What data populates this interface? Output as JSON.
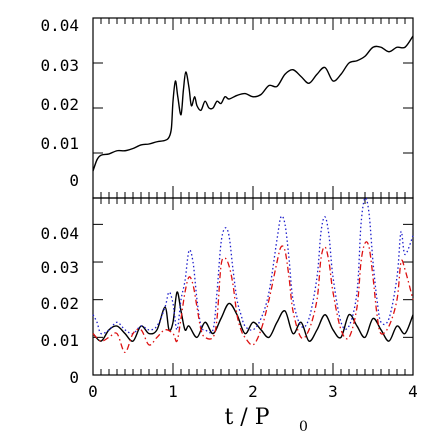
{
  "chart_data": [
    {
      "type": "line",
      "panel": "top",
      "xlim": [
        0,
        4
      ],
      "ylim": [
        0,
        0.04
      ],
      "y_ticks": [
        "0",
        "0.01",
        "0.02",
        "0.03",
        "0.04"
      ],
      "grid": false,
      "series": [
        {
          "color": "#000000",
          "style": "solid",
          "x": [
            0.0,
            0.05,
            0.1,
            0.2,
            0.3,
            0.4,
            0.5,
            0.6,
            0.7,
            0.8,
            0.9,
            0.95,
            0.98,
            1.0,
            1.03,
            1.06,
            1.1,
            1.13,
            1.16,
            1.2,
            1.23,
            1.27,
            1.3,
            1.35,
            1.4,
            1.45,
            1.5,
            1.55,
            1.6,
            1.65,
            1.7,
            1.8,
            1.9,
            2.0,
            2.1,
            2.2,
            2.3,
            2.4,
            2.5,
            2.6,
            2.7,
            2.8,
            2.9,
            3.0,
            3.1,
            3.2,
            3.3,
            3.4,
            3.5,
            3.6,
            3.7,
            3.8,
            3.9,
            4.0
          ],
          "y": [
            0.006,
            0.0085,
            0.0095,
            0.0098,
            0.0105,
            0.0105,
            0.011,
            0.0118,
            0.012,
            0.0125,
            0.0128,
            0.0135,
            0.0155,
            0.0215,
            0.026,
            0.0225,
            0.0185,
            0.024,
            0.028,
            0.0245,
            0.0205,
            0.0225,
            0.0205,
            0.0195,
            0.0215,
            0.02,
            0.02,
            0.0215,
            0.021,
            0.0225,
            0.022,
            0.0228,
            0.0232,
            0.0225,
            0.023,
            0.025,
            0.0248,
            0.0275,
            0.0285,
            0.027,
            0.0255,
            0.0275,
            0.029,
            0.026,
            0.0275,
            0.03,
            0.0305,
            0.0315,
            0.0335,
            0.0335,
            0.0325,
            0.0335,
            0.0335,
            0.036
          ]
        }
      ]
    },
    {
      "type": "line",
      "panel": "bottom",
      "xlim": [
        0,
        4
      ],
      "ylim": [
        0,
        0.047
      ],
      "y_ticks": [
        "0",
        "0.01",
        "0.02",
        "0.03",
        "0.04"
      ],
      "x_ticks": [
        "0",
        "1",
        "2",
        "3",
        "4"
      ],
      "xlabel_main": "t  /  P",
      "xlabel_sub": "0",
      "grid": false,
      "series": [
        {
          "color": "#000000",
          "style": "solid",
          "x": [
            0.0,
            0.1,
            0.2,
            0.3,
            0.4,
            0.5,
            0.6,
            0.7,
            0.8,
            0.9,
            0.95,
            1.0,
            1.05,
            1.1,
            1.15,
            1.2,
            1.3,
            1.4,
            1.5,
            1.6,
            1.7,
            1.8,
            1.9,
            2.0,
            2.1,
            2.2,
            2.3,
            2.4,
            2.5,
            2.6,
            2.7,
            2.8,
            2.9,
            3.0,
            3.1,
            3.2,
            3.3,
            3.4,
            3.5,
            3.6,
            3.7,
            3.8,
            3.9,
            4.0
          ],
          "y": [
            0.011,
            0.009,
            0.012,
            0.013,
            0.011,
            0.009,
            0.013,
            0.011,
            0.012,
            0.018,
            0.012,
            0.014,
            0.022,
            0.017,
            0.012,
            0.013,
            0.01,
            0.014,
            0.011,
            0.015,
            0.019,
            0.016,
            0.011,
            0.014,
            0.012,
            0.01,
            0.014,
            0.017,
            0.011,
            0.014,
            0.009,
            0.012,
            0.016,
            0.012,
            0.01,
            0.016,
            0.013,
            0.01,
            0.015,
            0.012,
            0.009,
            0.013,
            0.011,
            0.016
          ]
        },
        {
          "color": "#1f1fcc",
          "style": "dotted",
          "x": [
            0.0,
            0.05,
            0.1,
            0.2,
            0.3,
            0.4,
            0.5,
            0.6,
            0.7,
            0.8,
            0.9,
            0.95,
            1.0,
            1.05,
            1.1,
            1.15,
            1.2,
            1.25,
            1.3,
            1.35,
            1.4,
            1.5,
            1.55,
            1.6,
            1.65,
            1.7,
            1.75,
            1.8,
            1.85,
            1.9,
            2.0,
            2.1,
            2.2,
            2.3,
            2.35,
            2.4,
            2.45,
            2.5,
            2.6,
            2.7,
            2.8,
            2.85,
            2.9,
            2.95,
            3.0,
            3.1,
            3.2,
            3.3,
            3.35,
            3.4,
            3.45,
            3.5,
            3.55,
            3.6,
            3.7,
            3.8,
            3.85,
            3.9,
            4.0
          ],
          "y": [
            0.016,
            0.014,
            0.011,
            0.012,
            0.014,
            0.012,
            0.011,
            0.013,
            0.012,
            0.013,
            0.018,
            0.022,
            0.019,
            0.012,
            0.02,
            0.025,
            0.033,
            0.03,
            0.02,
            0.013,
            0.012,
            0.012,
            0.022,
            0.035,
            0.039,
            0.037,
            0.028,
            0.02,
            0.016,
            0.013,
            0.012,
            0.015,
            0.022,
            0.036,
            0.042,
            0.04,
            0.031,
            0.02,
            0.013,
            0.015,
            0.026,
            0.038,
            0.042,
            0.037,
            0.026,
            0.014,
            0.013,
            0.022,
            0.04,
            0.047,
            0.043,
            0.03,
            0.02,
            0.014,
            0.015,
            0.026,
            0.038,
            0.032,
            0.037
          ]
        },
        {
          "color": "#dd1111",
          "style": "dashdot",
          "x": [
            0.0,
            0.1,
            0.2,
            0.3,
            0.4,
            0.5,
            0.6,
            0.7,
            0.8,
            0.9,
            1.0,
            1.05,
            1.1,
            1.15,
            1.2,
            1.25,
            1.3,
            1.35,
            1.4,
            1.5,
            1.55,
            1.6,
            1.65,
            1.7,
            1.75,
            1.8,
            1.85,
            1.9,
            2.0,
            2.1,
            2.2,
            2.3,
            2.35,
            2.4,
            2.45,
            2.5,
            2.6,
            2.7,
            2.8,
            2.85,
            2.9,
            2.95,
            3.0,
            3.1,
            3.2,
            3.3,
            3.35,
            3.4,
            3.45,
            3.5,
            3.55,
            3.6,
            3.7,
            3.8,
            3.85,
            3.9,
            4.0
          ],
          "y": [
            0.011,
            0.009,
            0.01,
            0.011,
            0.006,
            0.011,
            0.012,
            0.008,
            0.01,
            0.012,
            0.011,
            0.009,
            0.015,
            0.022,
            0.026,
            0.024,
            0.018,
            0.012,
            0.01,
            0.01,
            0.015,
            0.029,
            0.031,
            0.029,
            0.024,
            0.016,
            0.012,
            0.01,
            0.008,
            0.012,
            0.02,
            0.03,
            0.034,
            0.033,
            0.026,
            0.017,
            0.01,
            0.012,
            0.02,
            0.031,
            0.034,
            0.03,
            0.022,
            0.012,
            0.01,
            0.018,
            0.03,
            0.035,
            0.034,
            0.026,
            0.016,
            0.011,
            0.013,
            0.02,
            0.03,
            0.028,
            0.02
          ]
        }
      ]
    }
  ]
}
